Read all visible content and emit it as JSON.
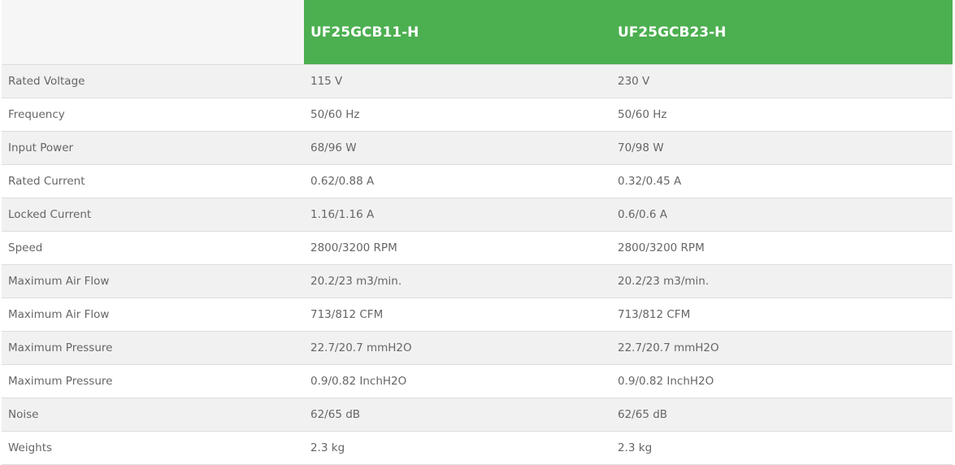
{
  "header": {
    "blank": "",
    "models": [
      "UF25GCB11-H",
      "UF25GCB23-H"
    ]
  },
  "colors": {
    "header_green": "#4caf50",
    "row_alt": "#f1f1f1",
    "text": "#666666"
  },
  "rows": [
    {
      "label": "Rated Voltage",
      "values": [
        "115 V",
        "230 V"
      ]
    },
    {
      "label": "Frequency",
      "values": [
        "50/60 Hz",
        "50/60 Hz"
      ]
    },
    {
      "label": "Input Power",
      "values": [
        "68/96 W",
        "70/98 W"
      ]
    },
    {
      "label": "Rated Current",
      "values": [
        "0.62/0.88 A",
        "0.32/0.45 A"
      ]
    },
    {
      "label": "Locked Current",
      "values": [
        "1.16/1.16 A",
        "0.6/0.6 A"
      ]
    },
    {
      "label": "Speed",
      "values": [
        "2800/3200 RPM",
        "2800/3200 RPM"
      ]
    },
    {
      "label": "Maximum Air Flow",
      "values": [
        "20.2/23 m3/min.",
        "20.2/23 m3/min."
      ]
    },
    {
      "label": "Maximum Air Flow",
      "values": [
        "713/812 CFM",
        "713/812 CFM"
      ]
    },
    {
      "label": "Maximum Pressure",
      "values": [
        "22.7/20.7 mmH2O",
        "22.7/20.7 mmH2O"
      ]
    },
    {
      "label": "Maximum Pressure",
      "values": [
        "0.9/0.82 InchH2O",
        "0.9/0.82 InchH2O"
      ]
    },
    {
      "label": "Noise",
      "values": [
        "62/65 dB",
        "62/65 dB"
      ]
    },
    {
      "label": "Weights",
      "values": [
        "2.3 kg",
        "2.3 kg"
      ]
    }
  ]
}
